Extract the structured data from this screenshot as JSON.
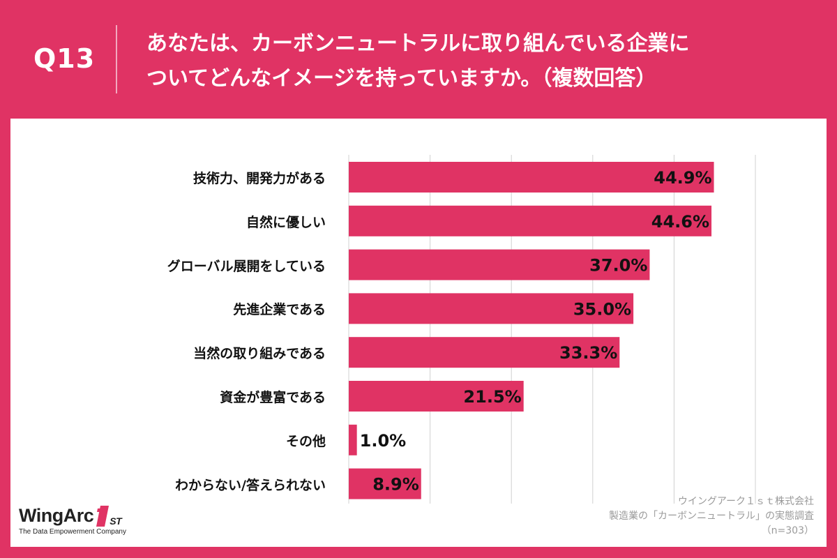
{
  "header": {
    "question_number": "Q13",
    "question_line1": "あなたは、カーボンニュートラルに取り組んでいる企業に",
    "question_line2": "ついてどんなイメージを持っていますか。（複数回答）"
  },
  "chart_data": {
    "type": "bar",
    "orientation": "horizontal",
    "categories": [
      "技術力、開発力がある",
      "自然に優しい",
      "グローバル展開をしている",
      "先進企業である",
      "当然の取り組みである",
      "資金が豊富である",
      "その他",
      "わからない/答えられない"
    ],
    "values": [
      44.9,
      44.6,
      37.0,
      35.0,
      33.3,
      21.5,
      1.0,
      8.9
    ],
    "value_labels": [
      "44.9%",
      "44.6%",
      "37.0%",
      "35.0%",
      "33.3%",
      "21.5%",
      "1.0%",
      "8.9%"
    ],
    "xlim": [
      0,
      50
    ],
    "grid": true,
    "bar_color": "#e03364"
  },
  "source": {
    "line1": "ウイングアーク１ｓｔ株式会社",
    "line2": "製造業の「カーボンニュートラル」の実態調査",
    "line3": "（n=303）"
  },
  "logo": {
    "name": "WingArc",
    "suffix": "ST",
    "tagline": "The Data Empowerment Company"
  },
  "colors": {
    "background": "#e03364",
    "panel": "#ffffff",
    "grid": "#d0d0d0"
  }
}
